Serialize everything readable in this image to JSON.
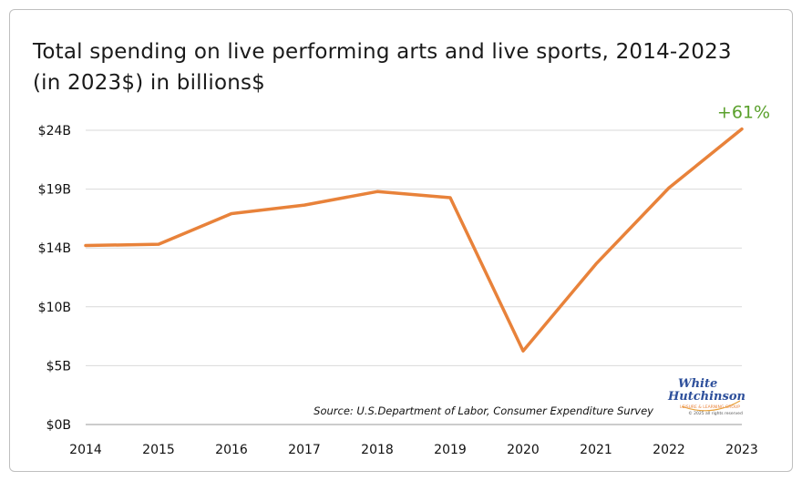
{
  "chart_data": {
    "type": "line",
    "title": "Total spending on live performing arts and live sports, 2014-2023 (in 2023$) in billions$",
    "xlabel": "",
    "ylabel": "",
    "x": [
      "2014",
      "2015",
      "2016",
      "2017",
      "2018",
      "2019",
      "2020",
      "2021",
      "2022",
      "2023"
    ],
    "series": [
      {
        "values": [
          14.6,
          14.7,
          17.2,
          17.9,
          19.0,
          18.5,
          6.0,
          13.1,
          19.3,
          24.1
        ],
        "color": "#e8823a"
      }
    ],
    "ylim": [
      0,
      24
    ],
    "yticks": [
      0,
      4.8,
      9.6,
      14.4,
      19.2,
      24
    ],
    "ytick_labels": [
      "$0B",
      "$5B",
      "$10B",
      "$14B",
      "$19B",
      "$24B"
    ],
    "annotation": {
      "text": "+61%",
      "color": "#5aa02c",
      "at": "2023"
    },
    "grid": true,
    "legend": "none",
    "source": "Source: U.S.Department of Labor, Consumer Expenditure Survey"
  },
  "logo": {
    "line1": "White",
    "line2": "Hutchinson",
    "arc_text": "LEISURE & LEARNING GROUP",
    "copyright": "© 2025 all rights reserved"
  }
}
